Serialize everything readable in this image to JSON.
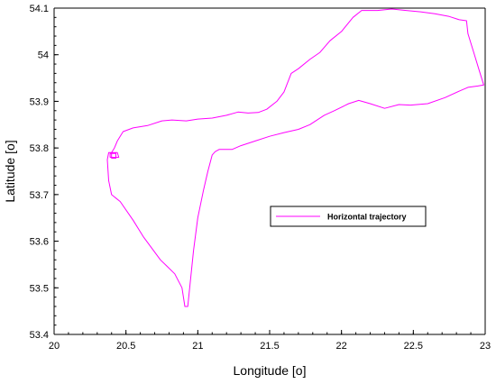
{
  "chart_data": {
    "type": "line",
    "xlabel": "Longitude [o]",
    "ylabel": "Latitude [o]",
    "xlim": [
      20,
      23
    ],
    "ylim": [
      53.4,
      54.1
    ],
    "x_ticks": [
      "20",
      "20.5",
      "21",
      "21.5",
      "22",
      "22.5",
      "23"
    ],
    "y_ticks": [
      "53.4",
      "53.5",
      "53.6",
      "53.7",
      "53.8",
      "53.9",
      "54",
      "54.1"
    ],
    "grid": false,
    "legend_position": "center-right",
    "series": [
      {
        "name": "Horizontal trajectory",
        "color": "#ff00ff",
        "points": [
          [
            20.4,
            53.79
          ],
          [
            20.42,
            53.8
          ],
          [
            20.44,
            53.815
          ],
          [
            20.48,
            53.835
          ],
          [
            20.55,
            53.843
          ],
          [
            20.65,
            53.848
          ],
          [
            20.75,
            53.858
          ],
          [
            20.82,
            53.86
          ],
          [
            20.92,
            53.858
          ],
          [
            21.0,
            53.862
          ],
          [
            21.1,
            53.864
          ],
          [
            21.2,
            53.87
          ],
          [
            21.28,
            53.877
          ],
          [
            21.35,
            53.875
          ],
          [
            21.42,
            53.876
          ],
          [
            21.48,
            53.883
          ],
          [
            21.55,
            53.9
          ],
          [
            21.6,
            53.92
          ],
          [
            21.65,
            53.96
          ],
          [
            21.7,
            53.97
          ],
          [
            21.78,
            53.99
          ],
          [
            21.85,
            54.005
          ],
          [
            21.92,
            54.03
          ],
          [
            22.0,
            54.05
          ],
          [
            22.08,
            54.08
          ],
          [
            22.14,
            54.095
          ],
          [
            22.25,
            54.095
          ],
          [
            22.35,
            54.098
          ],
          [
            22.45,
            54.095
          ],
          [
            22.55,
            54.092
          ],
          [
            22.65,
            54.088
          ],
          [
            22.75,
            54.082
          ],
          [
            22.82,
            54.075
          ],
          [
            22.87,
            54.073
          ],
          [
            22.88,
            54.045
          ],
          [
            22.92,
            54.005
          ],
          [
            22.96,
            53.965
          ],
          [
            22.99,
            53.935
          ],
          [
            22.95,
            53.933
          ],
          [
            22.88,
            53.93
          ],
          [
            22.82,
            53.922
          ],
          [
            22.72,
            53.908
          ],
          [
            22.6,
            53.895
          ],
          [
            22.48,
            53.892
          ],
          [
            22.4,
            53.893
          ],
          [
            22.3,
            53.885
          ],
          [
            22.2,
            53.895
          ],
          [
            22.12,
            53.902
          ],
          [
            22.05,
            53.895
          ],
          [
            21.95,
            53.88
          ],
          [
            21.88,
            53.87
          ],
          [
            21.78,
            53.85
          ],
          [
            21.7,
            53.84
          ],
          [
            21.6,
            53.833
          ],
          [
            21.5,
            53.825
          ],
          [
            21.4,
            53.815
          ],
          [
            21.3,
            53.805
          ],
          [
            21.24,
            53.797
          ],
          [
            21.15,
            53.797
          ],
          [
            21.12,
            53.792
          ],
          [
            21.1,
            53.785
          ],
          [
            21.07,
            53.75
          ],
          [
            21.04,
            53.71
          ],
          [
            21.0,
            53.65
          ],
          [
            20.97,
            53.58
          ],
          [
            20.95,
            53.52
          ],
          [
            20.93,
            53.46
          ],
          [
            20.91,
            53.46
          ],
          [
            20.89,
            53.5
          ],
          [
            20.84,
            53.53
          ],
          [
            20.78,
            53.548
          ],
          [
            20.74,
            53.56
          ],
          [
            20.68,
            53.585
          ],
          [
            20.62,
            53.61
          ],
          [
            20.55,
            53.645
          ],
          [
            20.46,
            53.685
          ],
          [
            20.4,
            53.7
          ],
          [
            20.38,
            53.73
          ],
          [
            20.37,
            53.775
          ],
          [
            20.38,
            53.79
          ],
          [
            20.44,
            53.79
          ],
          [
            20.45,
            53.78
          ],
          [
            20.39,
            53.78
          ],
          [
            20.39,
            53.788
          ],
          [
            20.43,
            53.788
          ],
          [
            20.43,
            53.778
          ],
          [
            20.4,
            53.778
          ],
          [
            20.4,
            53.79
          ]
        ]
      }
    ]
  }
}
